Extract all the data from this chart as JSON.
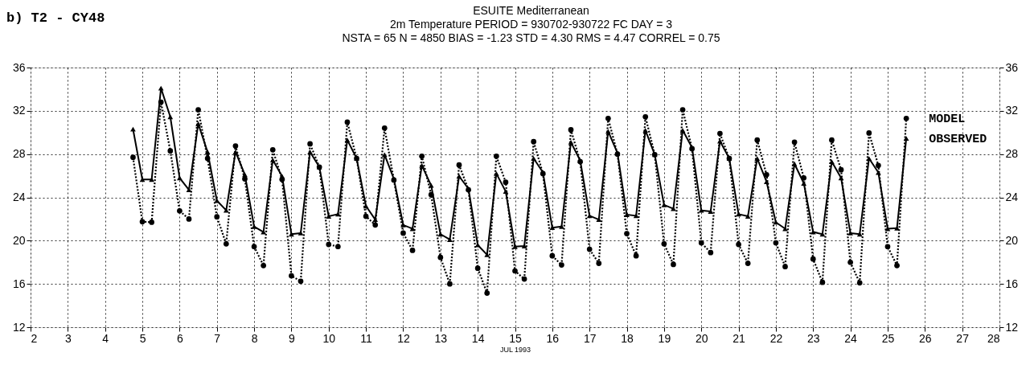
{
  "chart_data": {
    "type": "line",
    "title": "b)  T2 - CY48",
    "subtitle": "ESUITE          Mediterranean\n2m Temperature      PERIOD = 930702-930722      FC DAY = 3\nNSTA =  65   N =  4850   BIAS = -1.23   STD = 4.30   RMS = 4.47   CORREL = 0.75",
    "xlabel": "JUL 1993",
    "x": [
      4.75,
      5.0,
      5.25,
      5.5,
      5.75,
      6.0,
      6.25,
      6.5,
      6.75,
      7.0,
      7.25,
      7.5,
      7.75,
      8.0,
      8.25,
      8.5,
      8.75,
      9.0,
      9.25,
      9.5,
      9.75,
      10.0,
      10.25,
      10.5,
      10.75,
      11.0,
      11.25,
      11.5,
      11.75,
      12.0,
      12.25,
      12.5,
      12.75,
      13.0,
      13.25,
      13.5,
      13.75,
      14.0,
      14.25,
      14.5,
      14.75,
      15.0,
      15.25,
      15.5,
      15.75,
      16.0,
      16.25,
      16.5,
      16.75,
      17.0,
      17.25,
      17.5,
      17.75,
      18.0,
      18.25,
      18.5,
      18.75,
      19.0,
      19.25,
      19.5,
      19.75,
      20.0,
      20.25,
      20.5,
      20.75,
      21.0,
      21.25,
      21.5,
      21.75,
      22.0,
      22.25,
      22.5,
      22.75,
      23.0,
      23.25,
      23.5,
      23.75,
      24.0,
      24.25,
      24.5,
      24.75,
      25.0,
      25.25,
      25.5
    ],
    "series": [
      {
        "name": "MODEL",
        "color": "#000000",
        "marker": "circle",
        "line_style": "dotted",
        "values": [
          27.7,
          21.75,
          21.7,
          32.8,
          28.3,
          22.75,
          22.0,
          32.1,
          27.6,
          22.2,
          19.7,
          28.75,
          25.7,
          19.45,
          17.7,
          28.4,
          25.65,
          16.75,
          16.25,
          28.95,
          26.8,
          19.65,
          19.45,
          30.95,
          27.6,
          22.25,
          21.45,
          30.4,
          25.6,
          20.7,
          19.1,
          27.8,
          24.25,
          18.45,
          16.0,
          27.0,
          24.7,
          17.45,
          15.15,
          27.8,
          25.4,
          17.2,
          16.45,
          29.15,
          26.2,
          18.6,
          17.75,
          30.25,
          27.3,
          19.2,
          17.9,
          31.3,
          28.0,
          20.65,
          18.6,
          31.45,
          27.95,
          19.7,
          17.8,
          32.1,
          28.5,
          19.8,
          18.9,
          29.9,
          27.6,
          19.65,
          17.9,
          29.3,
          26.1,
          19.8,
          17.6,
          29.1,
          25.8,
          18.3,
          16.15,
          29.3,
          26.55,
          18.0,
          16.1,
          29.95,
          26.95,
          19.45,
          17.7,
          31.3
        ]
      },
      {
        "name": "OBSERVED",
        "color": "#000000",
        "marker": "triangle",
        "line_style": "solid",
        "values": [
          30.3,
          25.65,
          25.65,
          34.1,
          31.45,
          25.8,
          24.7,
          30.8,
          28.2,
          23.7,
          22.8,
          28.2,
          26.1,
          21.3,
          20.8,
          27.45,
          25.95,
          20.6,
          20.7,
          28.2,
          26.8,
          22.25,
          22.45,
          29.3,
          27.6,
          23.2,
          21.95,
          27.95,
          25.7,
          21.45,
          21.1,
          26.95,
          25.1,
          20.6,
          20.1,
          25.95,
          24.8,
          19.6,
          18.7,
          26.2,
          24.55,
          19.45,
          19.5,
          27.6,
          26.3,
          21.2,
          21.3,
          29.1,
          27.4,
          22.3,
          21.95,
          30.1,
          28.1,
          22.4,
          22.3,
          30.2,
          27.95,
          23.3,
          22.95,
          30.2,
          28.6,
          22.8,
          22.7,
          29.2,
          27.6,
          22.45,
          22.25,
          27.6,
          25.45,
          21.7,
          21.1,
          27.1,
          25.3,
          20.8,
          20.6,
          27.3,
          25.8,
          20.7,
          20.6,
          27.6,
          26.3,
          21.1,
          21.15,
          29.45
        ]
      }
    ],
    "xlim": [
      2,
      28
    ],
    "xticks": [
      2,
      3,
      4,
      5,
      6,
      7,
      8,
      9,
      10,
      11,
      12,
      13,
      14,
      15,
      16,
      17,
      18,
      19,
      20,
      21,
      22,
      23,
      24,
      25,
      26,
      27,
      28
    ],
    "ylim": [
      12,
      36
    ],
    "yticks": [
      12,
      16,
      20,
      24,
      28,
      32,
      36
    ],
    "y2lim": [
      12,
      36
    ],
    "y2ticks": [
      12,
      16,
      20,
      24,
      28,
      32,
      36
    ],
    "grid": true,
    "legend": false
  }
}
